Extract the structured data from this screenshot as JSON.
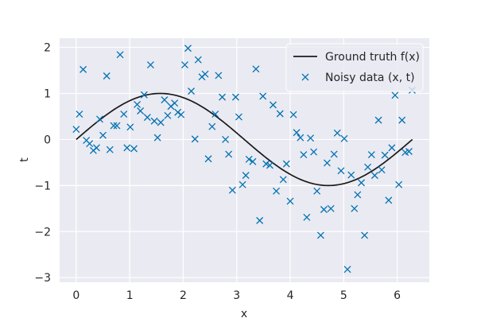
{
  "chart_data": {
    "type": "scatter",
    "xlabel": "x",
    "ylabel": "t",
    "xlim": [
      -0.31,
      6.6
    ],
    "ylim": [
      -3.1,
      2.2
    ],
    "x_ticks": [
      0,
      1,
      2,
      3,
      4,
      5,
      6
    ],
    "y_ticks": [
      -3,
      -2,
      -1,
      0,
      1,
      2
    ],
    "grid": true,
    "legend_position": "top-right",
    "background_color": "#eaeaf2",
    "series": [
      {
        "name": "Ground truth f(x)",
        "kind": "line",
        "color": "#1a1a1a",
        "function": "sin",
        "x_range": [
          0,
          6.2832
        ]
      },
      {
        "name": "Noisy data (x, t)",
        "kind": "scatter",
        "marker": "x",
        "color": "#0072b2",
        "points": [
          [
            0.0,
            0.22
          ],
          [
            0.06,
            0.55
          ],
          [
            0.13,
            1.52
          ],
          [
            0.19,
            -0.02
          ],
          [
            0.25,
            -0.09
          ],
          [
            0.32,
            -0.24
          ],
          [
            0.38,
            -0.18
          ],
          [
            0.44,
            0.44
          ],
          [
            0.5,
            0.09
          ],
          [
            0.57,
            1.38
          ],
          [
            0.63,
            -0.22
          ],
          [
            0.7,
            0.3
          ],
          [
            0.76,
            0.3
          ],
          [
            0.82,
            1.84
          ],
          [
            0.89,
            0.55
          ],
          [
            0.95,
            -0.18
          ],
          [
            1.01,
            0.27
          ],
          [
            1.08,
            -0.2
          ],
          [
            1.14,
            0.76
          ],
          [
            1.2,
            0.62
          ],
          [
            1.27,
            0.97
          ],
          [
            1.33,
            0.48
          ],
          [
            1.39,
            1.62
          ],
          [
            1.46,
            0.4
          ],
          [
            1.52,
            0.04
          ],
          [
            1.58,
            0.37
          ],
          [
            1.65,
            0.86
          ],
          [
            1.71,
            0.52
          ],
          [
            1.77,
            0.72
          ],
          [
            1.84,
            0.79
          ],
          [
            1.9,
            0.59
          ],
          [
            1.96,
            0.54
          ],
          [
            2.03,
            1.62
          ],
          [
            2.09,
            1.98
          ],
          [
            2.15,
            1.05
          ],
          [
            2.22,
            0.01
          ],
          [
            2.28,
            1.73
          ],
          [
            2.35,
            1.36
          ],
          [
            2.41,
            1.42
          ],
          [
            2.47,
            -0.42
          ],
          [
            2.54,
            0.28
          ],
          [
            2.6,
            0.55
          ],
          [
            2.66,
            1.39
          ],
          [
            2.73,
            0.92
          ],
          [
            2.79,
            0.0
          ],
          [
            2.85,
            -0.32
          ],
          [
            2.92,
            -1.1
          ],
          [
            2.98,
            0.92
          ],
          [
            3.04,
            0.49
          ],
          [
            3.11,
            -0.98
          ],
          [
            3.17,
            -0.78
          ],
          [
            3.23,
            -0.43
          ],
          [
            3.3,
            -0.48
          ],
          [
            3.36,
            1.53
          ],
          [
            3.43,
            -1.76
          ],
          [
            3.49,
            0.94
          ],
          [
            3.55,
            -0.53
          ],
          [
            3.62,
            -0.56
          ],
          [
            3.68,
            0.75
          ],
          [
            3.74,
            -1.12
          ],
          [
            3.81,
            0.56
          ],
          [
            3.87,
            -0.87
          ],
          [
            3.93,
            -0.53
          ],
          [
            4.0,
            -1.34
          ],
          [
            4.06,
            0.54
          ],
          [
            4.12,
            0.15
          ],
          [
            4.19,
            0.04
          ],
          [
            4.25,
            -0.33
          ],
          [
            4.31,
            -1.69
          ],
          [
            4.38,
            0.03
          ],
          [
            4.44,
            -0.27
          ],
          [
            4.5,
            -1.12
          ],
          [
            4.57,
            -2.08
          ],
          [
            4.63,
            -1.52
          ],
          [
            4.69,
            -0.51
          ],
          [
            4.76,
            -1.5
          ],
          [
            4.82,
            -0.32
          ],
          [
            4.88,
            0.14
          ],
          [
            4.95,
            -0.68
          ],
          [
            5.01,
            0.02
          ],
          [
            5.07,
            -2.82
          ],
          [
            5.14,
            -0.77
          ],
          [
            5.2,
            -1.5
          ],
          [
            5.26,
            -1.2
          ],
          [
            5.33,
            -0.94
          ],
          [
            5.39,
            -2.08
          ],
          [
            5.45,
            -0.6
          ],
          [
            5.52,
            -0.33
          ],
          [
            5.58,
            -0.78
          ],
          [
            5.65,
            0.42
          ],
          [
            5.71,
            -0.66
          ],
          [
            5.77,
            -0.34
          ],
          [
            5.84,
            -1.32
          ],
          [
            5.9,
            -0.18
          ],
          [
            5.96,
            0.96
          ],
          [
            6.03,
            -0.98
          ],
          [
            6.09,
            0.42
          ],
          [
            6.15,
            -0.28
          ],
          [
            6.22,
            -0.26
          ],
          [
            6.28,
            1.07
          ]
        ]
      }
    ]
  }
}
